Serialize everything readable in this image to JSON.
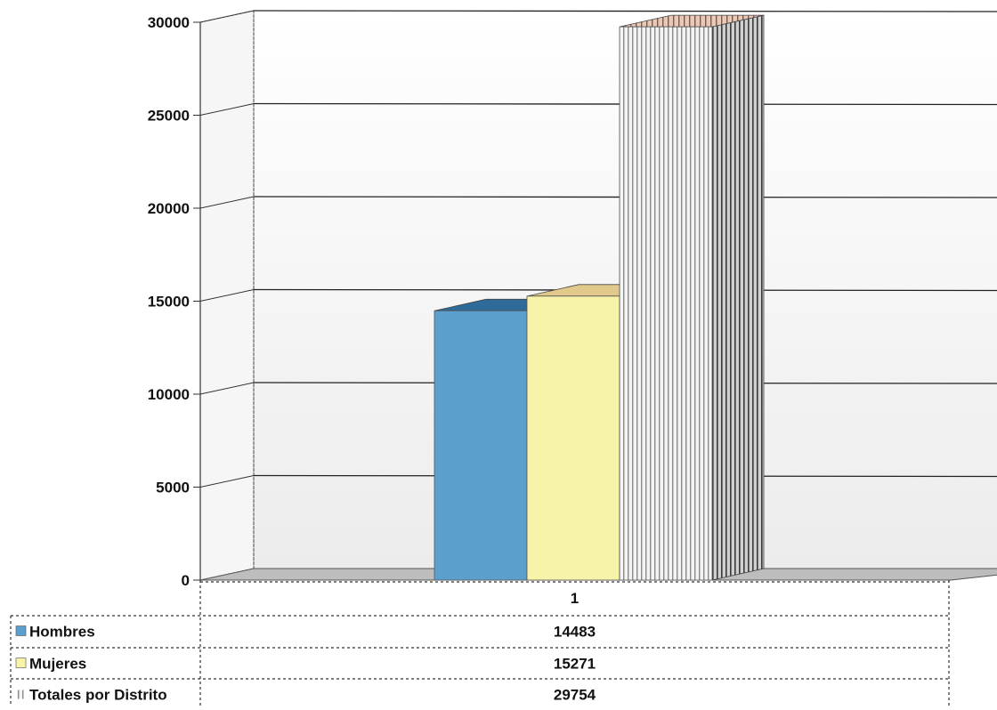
{
  "chart_data": {
    "type": "bar",
    "categories": [
      "1"
    ],
    "series": [
      {
        "name": "Hombres",
        "values": [
          14483
        ],
        "color": "#5b9fcf"
      },
      {
        "name": "Mujeres",
        "values": [
          15271
        ],
        "color": "#f7f3a8"
      },
      {
        "name": "Totales por Distrito",
        "values": [
          29754
        ],
        "color": "#f2f2f2"
      }
    ],
    "ylim": [
      0,
      30000
    ],
    "yticks": [
      "0",
      "5000",
      "10000",
      "15000",
      "20000",
      "25000",
      "30000"
    ],
    "grid": true,
    "legend": "data-table-below"
  }
}
